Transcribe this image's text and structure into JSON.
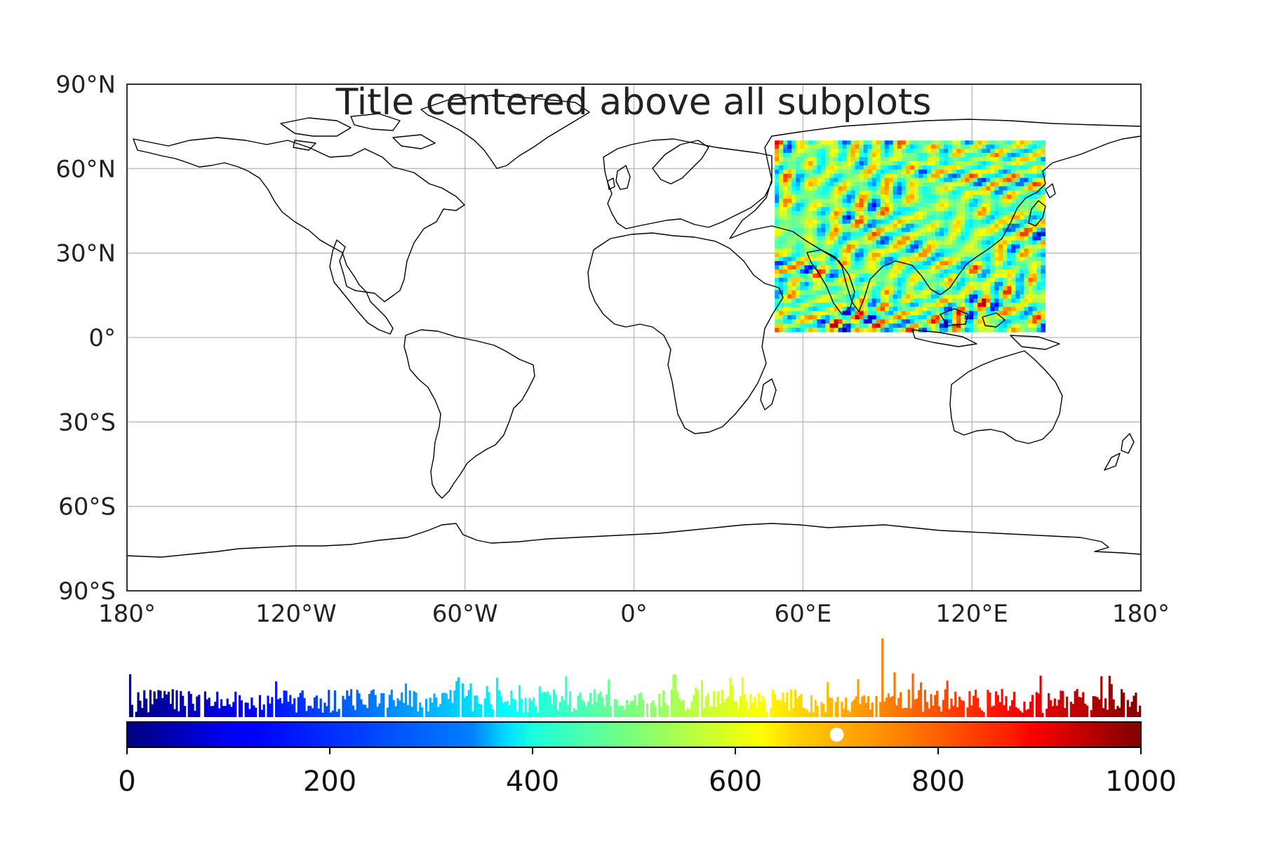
{
  "figure": {
    "title": "Title centered above all subplots"
  },
  "map": {
    "projection": "PlateCarree",
    "extent": {
      "lon": [
        -180,
        180
      ],
      "lat": [
        -90,
        90
      ]
    },
    "gridlines": true,
    "lat_ticks": [
      {
        "value": 90,
        "label": "90°N"
      },
      {
        "value": 60,
        "label": "60°N"
      },
      {
        "value": 30,
        "label": "30°N"
      },
      {
        "value": 0,
        "label": "0°"
      },
      {
        "value": -30,
        "label": "30°S"
      },
      {
        "value": -60,
        "label": "60°S"
      },
      {
        "value": -90,
        "label": "90°S"
      }
    ],
    "lon_ticks": [
      {
        "value": -180,
        "label": "180°"
      },
      {
        "value": -120,
        "label": "120°W"
      },
      {
        "value": -60,
        "label": "60°W"
      },
      {
        "value": 0,
        "label": "0°"
      },
      {
        "value": 60,
        "label": "60°E"
      },
      {
        "value": 120,
        "label": "120°E"
      },
      {
        "value": 180,
        "label": "180°"
      }
    ],
    "data_region": {
      "lon": [
        50,
        146
      ],
      "lat": [
        2,
        70
      ]
    },
    "colormap": "jet",
    "coastline_color": "#000000"
  },
  "colorbar": {
    "range": [
      0,
      1000
    ],
    "ticks": [
      {
        "value": 0,
        "label": "0"
      },
      {
        "value": 200,
        "label": "200"
      },
      {
        "value": 400,
        "label": "400"
      },
      {
        "value": 600,
        "label": "600"
      },
      {
        "value": 800,
        "label": "800"
      },
      {
        "value": 1000,
        "label": "1000"
      }
    ],
    "marker_value": 700,
    "marker_color": "#ffffff",
    "histogram": true,
    "histogram_peak_value": 745
  }
}
